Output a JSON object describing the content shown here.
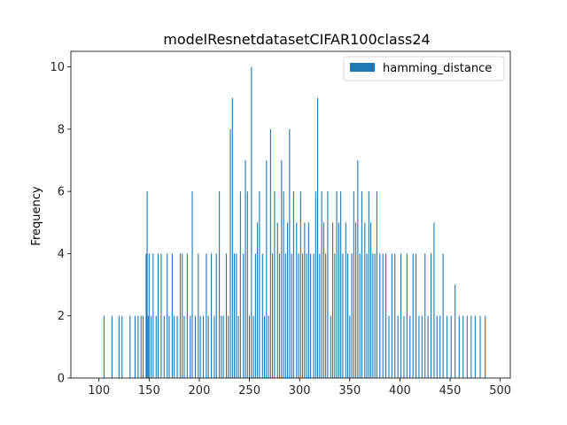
{
  "chart_data": {
    "type": "bar",
    "title": "modelResnetdatasetCIFAR100class24",
    "xlabel": "",
    "ylabel": "Frequency",
    "xlim": [
      72,
      510
    ],
    "ylim": [
      0,
      10.5
    ],
    "xticks": [
      100,
      150,
      200,
      250,
      300,
      350,
      400,
      450,
      500
    ],
    "yticks": [
      0,
      2,
      4,
      6,
      8,
      10
    ],
    "grid": false,
    "legend": "top-right",
    "bar_color": "#1f77b4",
    "series": [
      {
        "name": "hamming_distance",
        "x": [
          105,
          113,
          120,
          123,
          131,
          136,
          139,
          142,
          144,
          147,
          148,
          149,
          150,
          152,
          154,
          157,
          159,
          162,
          165,
          168,
          170,
          173,
          175,
          178,
          181,
          183,
          185,
          188,
          191,
          193,
          196,
          199,
          201,
          204,
          207,
          209,
          212,
          215,
          217,
          220,
          222,
          224,
          227,
          229,
          231,
          233,
          235,
          237,
          239,
          241,
          244,
          246,
          248,
          250,
          252,
          254,
          256,
          258,
          260,
          263,
          265,
          267,
          269,
          271,
          273,
          275,
          278,
          280,
          282,
          284,
          286,
          288,
          290,
          292,
          294,
          297,
          299,
          301,
          303,
          305,
          307,
          309,
          311,
          314,
          316,
          318,
          320,
          322,
          324,
          326,
          328,
          331,
          333,
          335,
          337,
          339,
          341,
          343,
          346,
          348,
          350,
          352,
          354,
          356,
          358,
          360,
          362,
          365,
          367,
          369,
          371,
          373,
          375,
          377,
          380,
          383,
          386,
          389,
          392,
          395,
          398,
          401,
          404,
          407,
          410,
          413,
          416,
          419,
          422,
          425,
          428,
          431,
          434,
          437,
          440,
          443,
          447,
          451,
          455,
          459,
          463,
          467,
          471,
          475,
          480,
          485
        ],
        "values": [
          2,
          2,
          2,
          2,
          2,
          2,
          2,
          2,
          2,
          4,
          6,
          2,
          4,
          2,
          4,
          2,
          4,
          4,
          2,
          4,
          2,
          4,
          2,
          2,
          4,
          4,
          2,
          4,
          2,
          6,
          2,
          4,
          2,
          2,
          4,
          2,
          4,
          2,
          4,
          6,
          2,
          2,
          4,
          2,
          8,
          9,
          4,
          4,
          2,
          6,
          4,
          7,
          6,
          2,
          10,
          2,
          4,
          5,
          6,
          4,
          2,
          7,
          2,
          8,
          4,
          6,
          5,
          4,
          7,
          6,
          4,
          5,
          8,
          4,
          6,
          5,
          4,
          6,
          4,
          5,
          4,
          5,
          4,
          4,
          6,
          9,
          4,
          6,
          5,
          4,
          6,
          2,
          5,
          4,
          6,
          5,
          6,
          4,
          5,
          4,
          2,
          4,
          6,
          5,
          7,
          4,
          6,
          5,
          4,
          6,
          5,
          4,
          4,
          6,
          4,
          4,
          4,
          2,
          4,
          4,
          2,
          4,
          2,
          4,
          2,
          4,
          4,
          2,
          2,
          4,
          2,
          4,
          5,
          2,
          2,
          4,
          2,
          2,
          3,
          2,
          2,
          2,
          2,
          2,
          2,
          2
        ]
      }
    ]
  }
}
